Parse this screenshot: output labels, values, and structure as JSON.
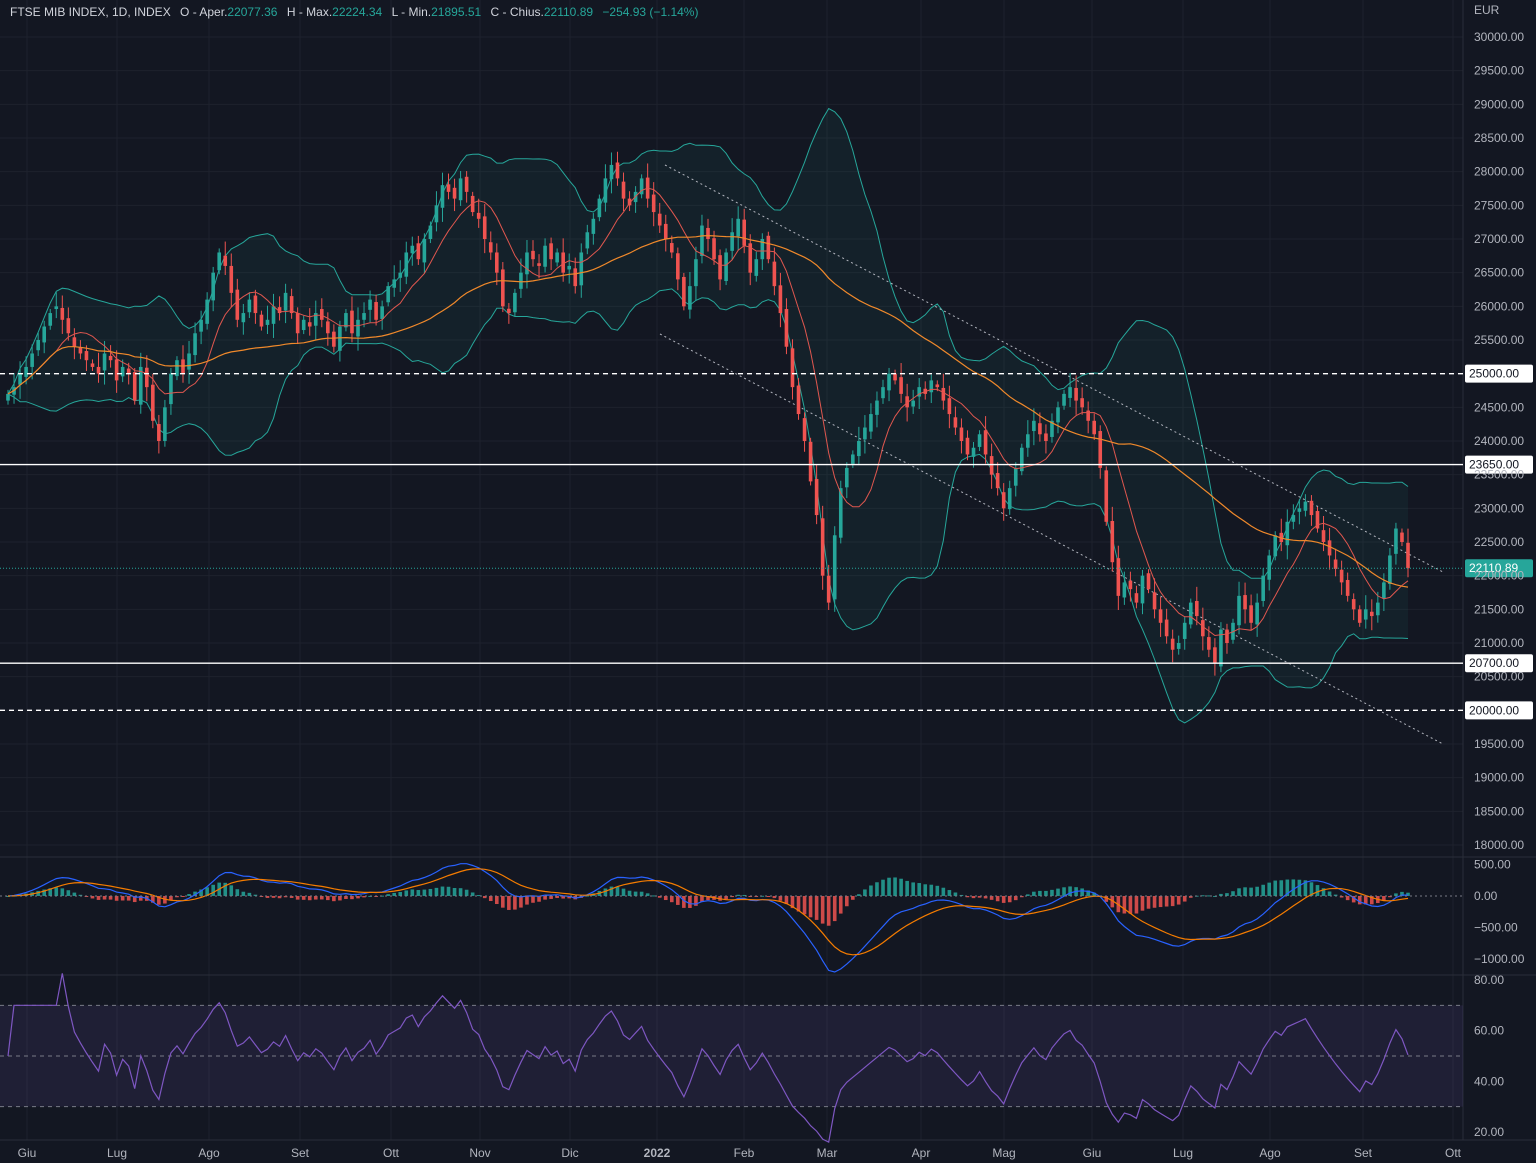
{
  "legend": {
    "symbol": "FTSE MIB INDEX, 1D, INDEX",
    "open_label": "O - Aper.",
    "open_value": "22077.36",
    "high_label": "H - Max.",
    "high_value": "22224.34",
    "low_label": "L - Min.",
    "low_value": "21895.51",
    "close_label": "C - Chius.",
    "close_value": "22110.89",
    "change": "−254.93 (−1.14%)"
  },
  "colors": {
    "background": "#131722",
    "grid": "#1e222d",
    "up": "#26a69a",
    "down": "#ef5350",
    "ma_fast": "#e0574f",
    "ma_slow": "#f0892b",
    "bollinger": "#26a69a",
    "macd": "#2962ff",
    "signal": "#f57c00",
    "rsi": "#7e57c2",
    "price_tag": "#26a69a"
  },
  "chart_data": [
    {
      "type": "candlestick",
      "title": "FTSE MIB INDEX, 1D, INDEX",
      "currency": "EUR",
      "x_labels": [
        "Giu",
        "Lug",
        "Ago",
        "Set",
        "Ott",
        "Nov",
        "Dic",
        "2022",
        "Feb",
        "Mar",
        "Apr",
        "Mag",
        "Giu",
        "Lug",
        "Ago",
        "Set",
        "Ott"
      ],
      "y_ticks": [
        30000,
        29500,
        29000,
        28500,
        28000,
        27500,
        27000,
        26500,
        26000,
        25500,
        25000,
        24500,
        24000,
        23500,
        23000,
        22500,
        22000,
        21500,
        21000,
        20500,
        20000,
        19500,
        19000,
        18500,
        18000
      ],
      "ylim": [
        17800,
        30300
      ],
      "closes_approx": [
        24700,
        24800,
        25000,
        25100,
        25300,
        25500,
        25700,
        25900,
        26000,
        25800,
        25600,
        25400,
        25300,
        25200,
        25100,
        25000,
        25300,
        25200,
        24900,
        25100,
        25000,
        24600,
        25100,
        24800,
        24300,
        24000,
        24500,
        25000,
        25200,
        25000,
        25300,
        25600,
        25800,
        26100,
        26500,
        26800,
        26600,
        26200,
        25800,
        25900,
        26100,
        25900,
        25700,
        25800,
        26000,
        25900,
        26200,
        25900,
        25600,
        25800,
        25700,
        25900,
        25800,
        25600,
        25400,
        25700,
        25900,
        25600,
        25800,
        25900,
        26100,
        25800,
        26000,
        26300,
        26400,
        26500,
        26800,
        26900,
        26700,
        27000,
        27200,
        27500,
        27800,
        27700,
        27600,
        27900,
        27700,
        27400,
        27300,
        27000,
        26800,
        26500,
        26000,
        25900,
        26200,
        26500,
        26800,
        26700,
        26600,
        26900,
        26700,
        26800,
        26500,
        26600,
        26300,
        26800,
        27100,
        27300,
        27600,
        27900,
        28100,
        27900,
        27600,
        27500,
        27700,
        27900,
        27600,
        27400,
        27200,
        27000,
        26800,
        26400,
        26000,
        26300,
        26700,
        27200,
        27000,
        26700,
        26400,
        26800,
        27100,
        27300,
        26900,
        26500,
        26700,
        27000,
        26700,
        26300,
        25900,
        25400,
        24800,
        24400,
        24000,
        23400,
        22900,
        22000,
        21600,
        22600,
        23300,
        23600,
        23800,
        24000,
        24200,
        24400,
        24600,
        24800,
        25000,
        24900,
        24700,
        24500,
        24600,
        24800,
        24700,
        24900,
        24800,
        24600,
        24400,
        24200,
        24000,
        23800,
        23900,
        24100,
        23800,
        23500,
        23300,
        23000,
        23300,
        23600,
        23900,
        24100,
        24300,
        24100,
        24000,
        24300,
        24500,
        24700,
        24800,
        24600,
        24500,
        24300,
        24100,
        23600,
        22800,
        22200,
        21700,
        21900,
        21800,
        21600,
        22000,
        21800,
        21500,
        21300,
        21100,
        20900,
        21000,
        21300,
        21600,
        21400,
        21100,
        20900,
        20700,
        21200,
        21000,
        21300,
        21700,
        21500,
        21300,
        21600,
        22000,
        22300,
        22600,
        22500,
        22800,
        22900,
        23000,
        23100,
        22900,
        22700,
        22500,
        22300,
        22100,
        21900,
        21700,
        21500,
        21300,
        21500,
        21400,
        21600,
        21900,
        22300,
        22700,
        22500,
        22111
      ]
    },
    {
      "type": "line",
      "title": "MACD",
      "y_ticks": [
        500,
        0,
        -500,
        -1000
      ],
      "ylim": [
        -1100,
        600
      ],
      "series": [
        {
          "name": "",
          "values_note": "",
          "values": []
        }
      ]
    },
    {
      "type": "line",
      "title": "RSI",
      "y_ticks": [
        80,
        60,
        40,
        20
      ],
      "ylim": [
        19,
        81
      ],
      "bands": [
        30,
        50,
        70
      ]
    }
  ],
  "levels": [
    {
      "label": "25000.00",
      "style": "dashed"
    },
    {
      "label": "23650.00",
      "style": "solid"
    },
    {
      "label": "20700.00",
      "style": "solid"
    },
    {
      "label": "20000.00",
      "style": "dashed"
    }
  ],
  "current_price": "22110.89",
  "price_axis_unit": "EUR"
}
